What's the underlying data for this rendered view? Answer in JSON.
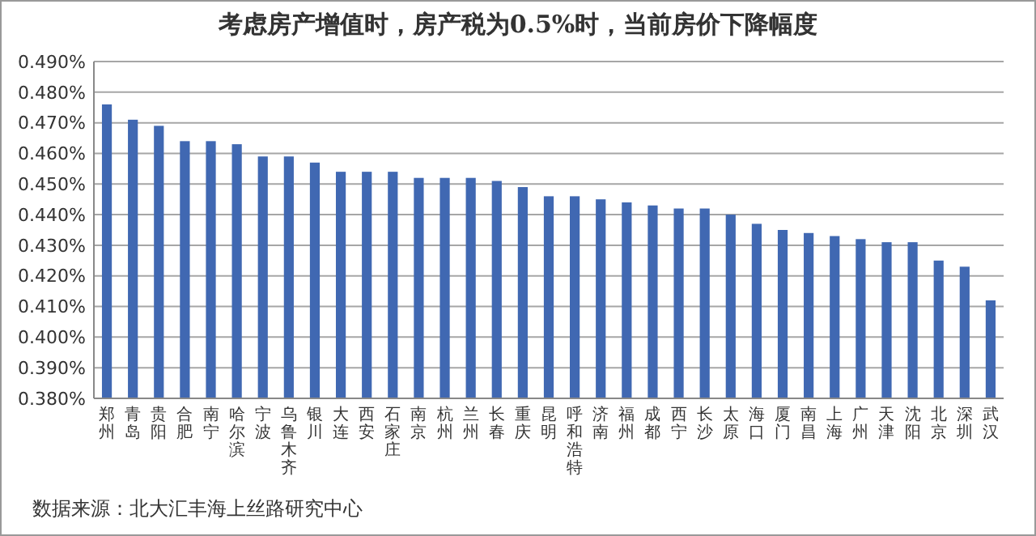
{
  "chart_data": {
    "type": "bar",
    "title": "考虑房产增值时，房产税为0.5%时，当前房价下降幅度",
    "categories": [
      "郑州",
      "青岛",
      "贵阳",
      "合肥",
      "南宁",
      "哈尔滨",
      "宁波",
      "乌鲁木齐",
      "银川",
      "大连",
      "西安",
      "石家庄",
      "南京",
      "杭州",
      "兰州",
      "长春",
      "重庆",
      "昆明",
      "呼和浩特",
      "济南",
      "福州",
      "成都",
      "西宁",
      "长沙",
      "太原",
      "海口",
      "厦门",
      "南昌",
      "上海",
      "广州",
      "天津",
      "沈阳",
      "北京",
      "深圳",
      "武汉"
    ],
    "values": [
      0.476,
      0.471,
      0.469,
      0.464,
      0.464,
      0.463,
      0.459,
      0.459,
      0.457,
      0.454,
      0.454,
      0.454,
      0.452,
      0.452,
      0.452,
      0.451,
      0.449,
      0.446,
      0.446,
      0.445,
      0.444,
      0.443,
      0.442,
      0.442,
      0.44,
      0.437,
      0.435,
      0.434,
      0.433,
      0.432,
      0.431,
      0.431,
      0.425,
      0.423,
      0.412
    ],
    "color": "#4068b2",
    "ylim": [
      0.38,
      0.49
    ],
    "yticks": [
      {
        "value": 0.38,
        "label": "0.380%"
      },
      {
        "value": 0.39,
        "label": "0.390%"
      },
      {
        "value": 0.4,
        "label": "0.400%"
      },
      {
        "value": 0.41,
        "label": "0.410%"
      },
      {
        "value": 0.42,
        "label": "0.420%"
      },
      {
        "value": 0.43,
        "label": "0.430%"
      },
      {
        "value": 0.44,
        "label": "0.440%"
      },
      {
        "value": 0.45,
        "label": "0.450%"
      },
      {
        "value": 0.46,
        "label": "0.460%"
      },
      {
        "value": 0.47,
        "label": "0.470%"
      },
      {
        "value": 0.48,
        "label": "0.480%"
      },
      {
        "value": 0.49,
        "label": "0.490%"
      }
    ],
    "grid": true,
    "annotations": [
      "数据来源：北大汇丰海上丝路研究中心"
    ]
  }
}
